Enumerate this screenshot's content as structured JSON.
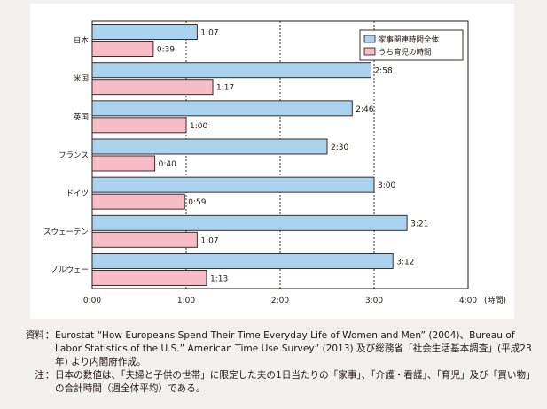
{
  "chart_data": {
    "type": "bar",
    "orientation": "horizontal",
    "categories": [
      "日本",
      "米国",
      "英国",
      "フランス",
      "ドイツ",
      "スウェーデン",
      "ノルウェー"
    ],
    "series": [
      {
        "name": "家事関連時間全体",
        "color": "#a9d3ee",
        "values": [
          "1:07",
          "2:58",
          "2:46",
          "2:30",
          "3:00",
          "3:21",
          "3:12"
        ]
      },
      {
        "name": "うち育児の時間",
        "color": "#f7bcc6",
        "values": [
          "0:39",
          "1:17",
          "1:00",
          "0:40",
          "0:59",
          "1:07",
          "1:13"
        ]
      }
    ],
    "x_ticks": [
      "0:00",
      "1:00",
      "2:00",
      "3:00",
      "4:00"
    ],
    "x_unit": "(時間)",
    "xlim": [
      "0:00",
      "4:00"
    ],
    "grid": "vertical dotted",
    "legend_position": "top-right"
  },
  "notes": [
    {
      "label": "資料",
      "sep": "：",
      "text": "Eurostat “How Europeans Spend Their Time Everyday Life of Women and Men” (2004)、Bureau of Labor Statistics of the U.S.” American Time Use Survey” (2013) 及び総務省「社会生活基本調査」(平成23年) より内閣府作成。"
    },
    {
      "label": "注",
      "sep": "：",
      "text": "日本の数値は、「夫婦と子供の世帯」に限定した夫の1日当たりの「家事」、「介護・看護」、「育児」及び「買い物」の合計時間（週全体平均）である。"
    }
  ]
}
